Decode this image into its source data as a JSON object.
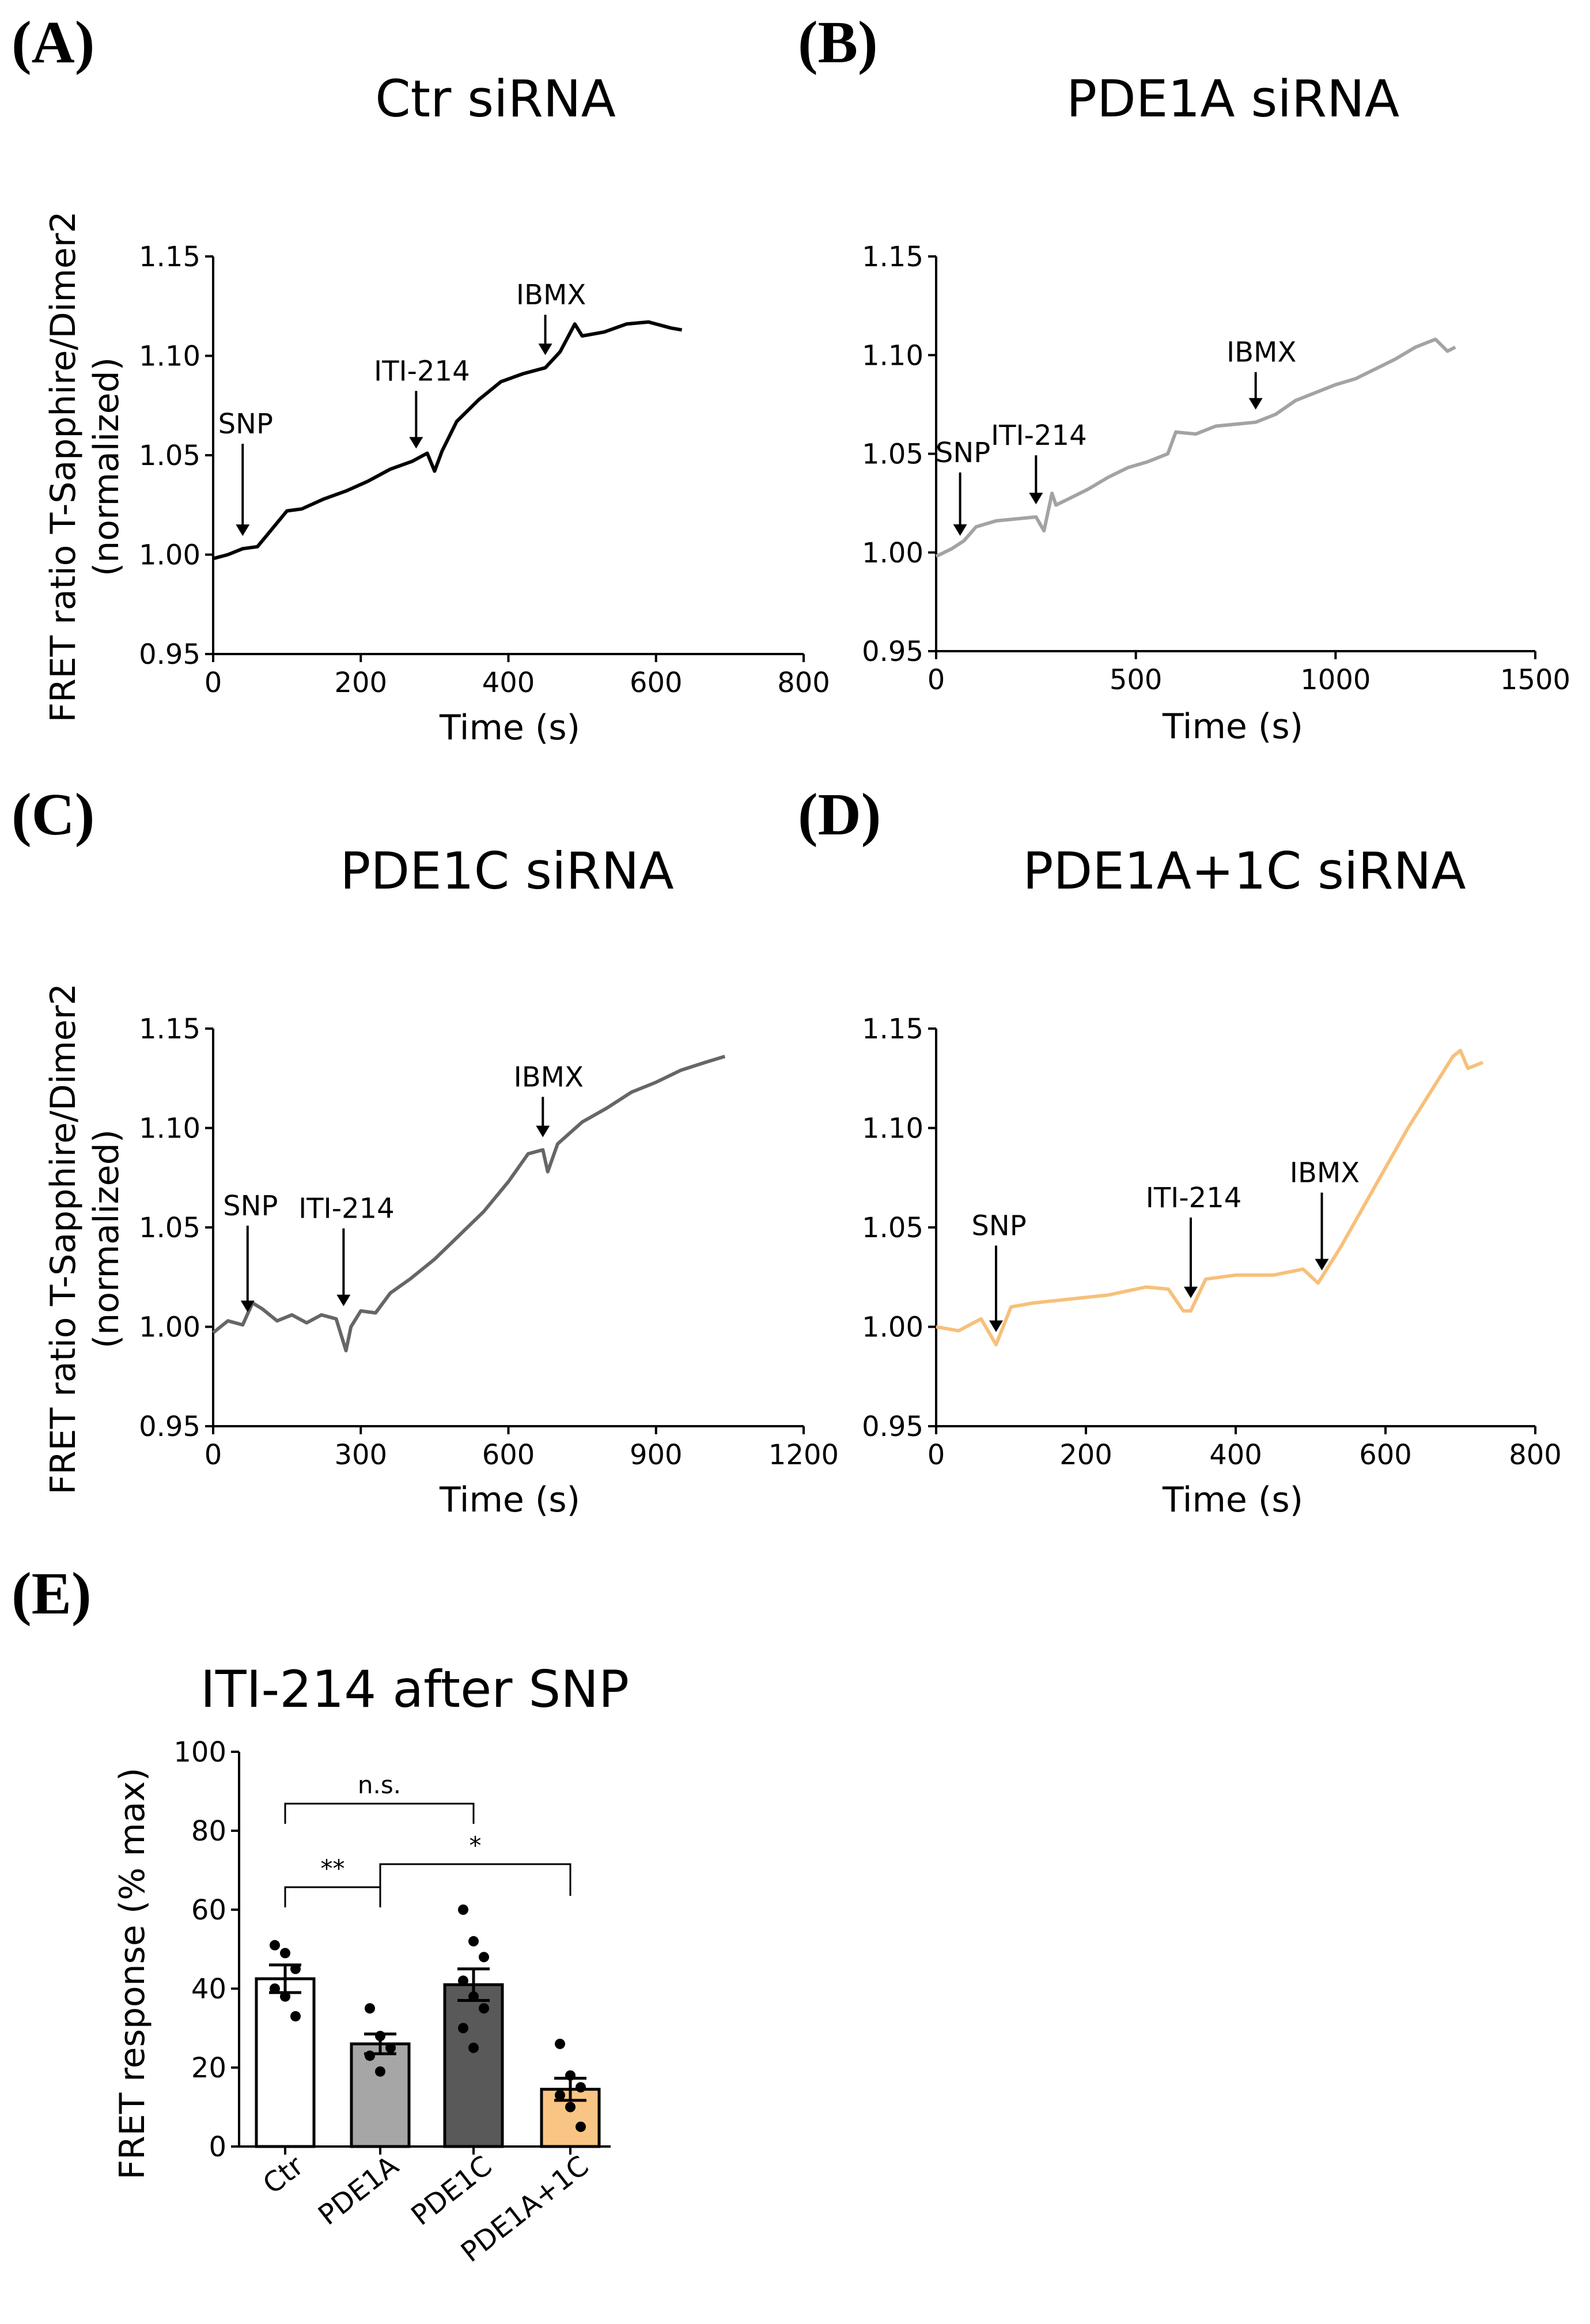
{
  "panels": [
    {
      "letter": "(A)",
      "title": "Ctr siRNA",
      "ylabel_line1": "FRET ratio T-Sapphire/Dimer2",
      "ylabel_line2": "(normalized)",
      "xlabel": "Time (s)",
      "color": "#000000",
      "show_ylabel": true
    },
    {
      "letter": "(B)",
      "title": "PDE1A siRNA",
      "ylabel_line1": "",
      "ylabel_line2": "",
      "xlabel": "Time (s)",
      "color": "#a3a3a3",
      "show_ylabel": false
    },
    {
      "letter": "(C)",
      "title": "PDE1C siRNA",
      "ylabel_line1": "FRET ratio T-Sapphire/Dimer2",
      "ylabel_line2": "(normalized)",
      "xlabel": "Time (s)",
      "color": "#666666",
      "show_ylabel": true
    },
    {
      "letter": "(D)",
      "title": "PDE1A+1C siRNA",
      "ylabel_line1": "",
      "ylabel_line2": "",
      "xlabel": "Time (s)",
      "color": "#f7c07a",
      "show_ylabel": false
    },
    {
      "letter": "(E)",
      "title": "ITI-214 after SNP",
      "ylabel_line1": "FRET response (% max)",
      "ylabel_line2": "",
      "xlabel": "",
      "color": "#000000",
      "show_ylabel": true
    }
  ],
  "chart_data": [
    {
      "type": "line",
      "panel": "A",
      "title": "Ctr siRNA",
      "xlabel": "Time (s)",
      "ylabel": "FRET ratio T-Sapphire/Dimer2 (normalized)",
      "xlim": [
        0,
        800
      ],
      "ylim": [
        0.95,
        1.15
      ],
      "xticks": [
        0,
        200,
        400,
        600,
        800
      ],
      "yticks": [
        0.95,
        1.0,
        1.05,
        1.1,
        1.15
      ],
      "ytick_labels": [
        "0.95",
        "1.00",
        "1.05",
        "1.10",
        "1.15"
      ],
      "color": "#000000",
      "x": [
        0,
        20,
        40,
        60,
        80,
        100,
        120,
        150,
        180,
        210,
        240,
        270,
        290,
        300,
        310,
        330,
        360,
        390,
        420,
        450,
        470,
        490,
        500,
        530,
        560,
        590,
        620,
        635
      ],
      "y": [
        0.998,
        1.0,
        1.003,
        1.004,
        1.013,
        1.022,
        1.023,
        1.028,
        1.032,
        1.037,
        1.043,
        1.047,
        1.051,
        1.042,
        1.052,
        1.067,
        1.078,
        1.087,
        1.091,
        1.094,
        1.102,
        1.116,
        1.11,
        1.112,
        1.116,
        1.117,
        1.114,
        1.113
      ],
      "events": [
        {
          "label": "SNP",
          "x": 40
        },
        {
          "label": "ITI-214",
          "x": 275
        },
        {
          "label": "IBMX",
          "x": 450
        }
      ]
    },
    {
      "type": "line",
      "panel": "B",
      "title": "PDE1A siRNA",
      "xlabel": "Time (s)",
      "ylabel": "",
      "xlim": [
        0,
        1500
      ],
      "ylim": [
        0.95,
        1.15
      ],
      "xticks": [
        0,
        500,
        1000,
        1500
      ],
      "yticks": [
        0.95,
        1.0,
        1.05,
        1.1,
        1.15
      ],
      "ytick_labels": [
        "0.95",
        "1.00",
        "1.05",
        "1.10",
        "1.15"
      ],
      "color": "#a3a3a3",
      "x": [
        0,
        40,
        70,
        100,
        150,
        200,
        250,
        270,
        290,
        300,
        330,
        380,
        430,
        480,
        530,
        580,
        600,
        650,
        700,
        750,
        800,
        850,
        900,
        950,
        1000,
        1050,
        1100,
        1150,
        1200,
        1250,
        1280,
        1300
      ],
      "y": [
        0.998,
        1.002,
        1.006,
        1.013,
        1.016,
        1.017,
        1.018,
        1.011,
        1.03,
        1.024,
        1.027,
        1.032,
        1.038,
        1.043,
        1.046,
        1.05,
        1.061,
        1.06,
        1.064,
        1.065,
        1.066,
        1.07,
        1.077,
        1.081,
        1.085,
        1.088,
        1.093,
        1.098,
        1.104,
        1.108,
        1.102,
        1.104
      ],
      "events": [
        {
          "label": "SNP",
          "x": 60
        },
        {
          "label": "ITI-214",
          "x": 250
        },
        {
          "label": "IBMX",
          "x": 800
        }
      ]
    },
    {
      "type": "line",
      "panel": "C",
      "title": "PDE1C siRNA",
      "xlabel": "Time (s)",
      "ylabel": "FRET ratio T-Sapphire/Dimer2 (normalized)",
      "xlim": [
        0,
        1200
      ],
      "ylim": [
        0.95,
        1.15
      ],
      "xticks": [
        0,
        300,
        600,
        900,
        1200
      ],
      "yticks": [
        0.95,
        1.0,
        1.05,
        1.1,
        1.15
      ],
      "ytick_labels": [
        "0.95",
        "1.00",
        "1.05",
        "1.10",
        "1.15"
      ],
      "color": "#666666",
      "x": [
        0,
        30,
        60,
        80,
        100,
        130,
        160,
        190,
        220,
        250,
        270,
        280,
        300,
        330,
        360,
        400,
        450,
        500,
        550,
        600,
        640,
        670,
        680,
        700,
        750,
        800,
        850,
        900,
        950,
        1000,
        1040
      ],
      "y": [
        0.997,
        1.003,
        1.001,
        1.012,
        1.009,
        1.003,
        1.006,
        1.002,
        1.006,
        1.004,
        0.988,
        1.0,
        1.008,
        1.007,
        1.017,
        1.024,
        1.034,
        1.046,
        1.058,
        1.073,
        1.087,
        1.089,
        1.078,
        1.092,
        1.103,
        1.11,
        1.118,
        1.123,
        1.129,
        1.133,
        1.136
      ],
      "events": [
        {
          "label": "SNP",
          "x": 70
        },
        {
          "label": "ITI-214",
          "x": 265
        },
        {
          "label": "IBMX",
          "x": 670
        }
      ]
    },
    {
      "type": "line",
      "panel": "D",
      "title": "PDE1A+1C siRNA",
      "xlabel": "Time (s)",
      "ylabel": "",
      "xlim": [
        0,
        800
      ],
      "ylim": [
        0.95,
        1.15
      ],
      "xticks": [
        0,
        200,
        400,
        600,
        800
      ],
      "yticks": [
        0.95,
        1.0,
        1.05,
        1.1,
        1.15
      ],
      "ytick_labels": [
        "0.95",
        "1.00",
        "1.05",
        "1.10",
        "1.15"
      ],
      "color": "#f7c07a",
      "x": [
        0,
        30,
        60,
        80,
        100,
        130,
        180,
        230,
        280,
        310,
        330,
        340,
        360,
        400,
        450,
        490,
        510,
        540,
        570,
        600,
        630,
        660,
        690,
        700,
        710,
        730
      ],
      "y": [
        1.0,
        0.998,
        1.004,
        0.991,
        1.01,
        1.012,
        1.014,
        1.016,
        1.02,
        1.019,
        1.008,
        1.008,
        1.024,
        1.026,
        1.026,
        1.029,
        1.022,
        1.04,
        1.06,
        1.08,
        1.1,
        1.118,
        1.136,
        1.139,
        1.13,
        1.133
      ],
      "events": [
        {
          "label": "SNP",
          "x": 80
        },
        {
          "label": "ITI-214",
          "x": 340
        },
        {
          "label": "IBMX",
          "x": 515
        }
      ]
    },
    {
      "type": "bar",
      "panel": "E",
      "title": "ITI-214 after SNP",
      "xlabel": "",
      "ylabel": "FRET response (% max)",
      "ylim": [
        0,
        100
      ],
      "yticks": [
        0,
        20,
        40,
        60,
        80,
        100
      ],
      "categories": [
        "Ctr",
        "PDE1A",
        "PDE1C",
        "PDE1A+1C"
      ],
      "values": [
        42.5,
        26.0,
        41.0,
        14.5
      ],
      "sem": [
        3.5,
        2.5,
        4.0,
        2.8
      ],
      "colors": [
        "#ffffff",
        "#a6a6a6",
        "#595959",
        "#f9c584"
      ],
      "points": [
        [
          51,
          49,
          45,
          40,
          38,
          33
        ],
        [
          35,
          28,
          25,
          23,
          19
        ],
        [
          60,
          52,
          48,
          42,
          38,
          35,
          30,
          25
        ],
        [
          26,
          18,
          15,
          13,
          10,
          5
        ]
      ],
      "significance": [
        {
          "from": 0,
          "to": 2,
          "label": "n.s."
        },
        {
          "from": 0,
          "to": 1,
          "label": "**"
        },
        {
          "from": 1,
          "to": 3,
          "label": "*"
        }
      ]
    }
  ]
}
